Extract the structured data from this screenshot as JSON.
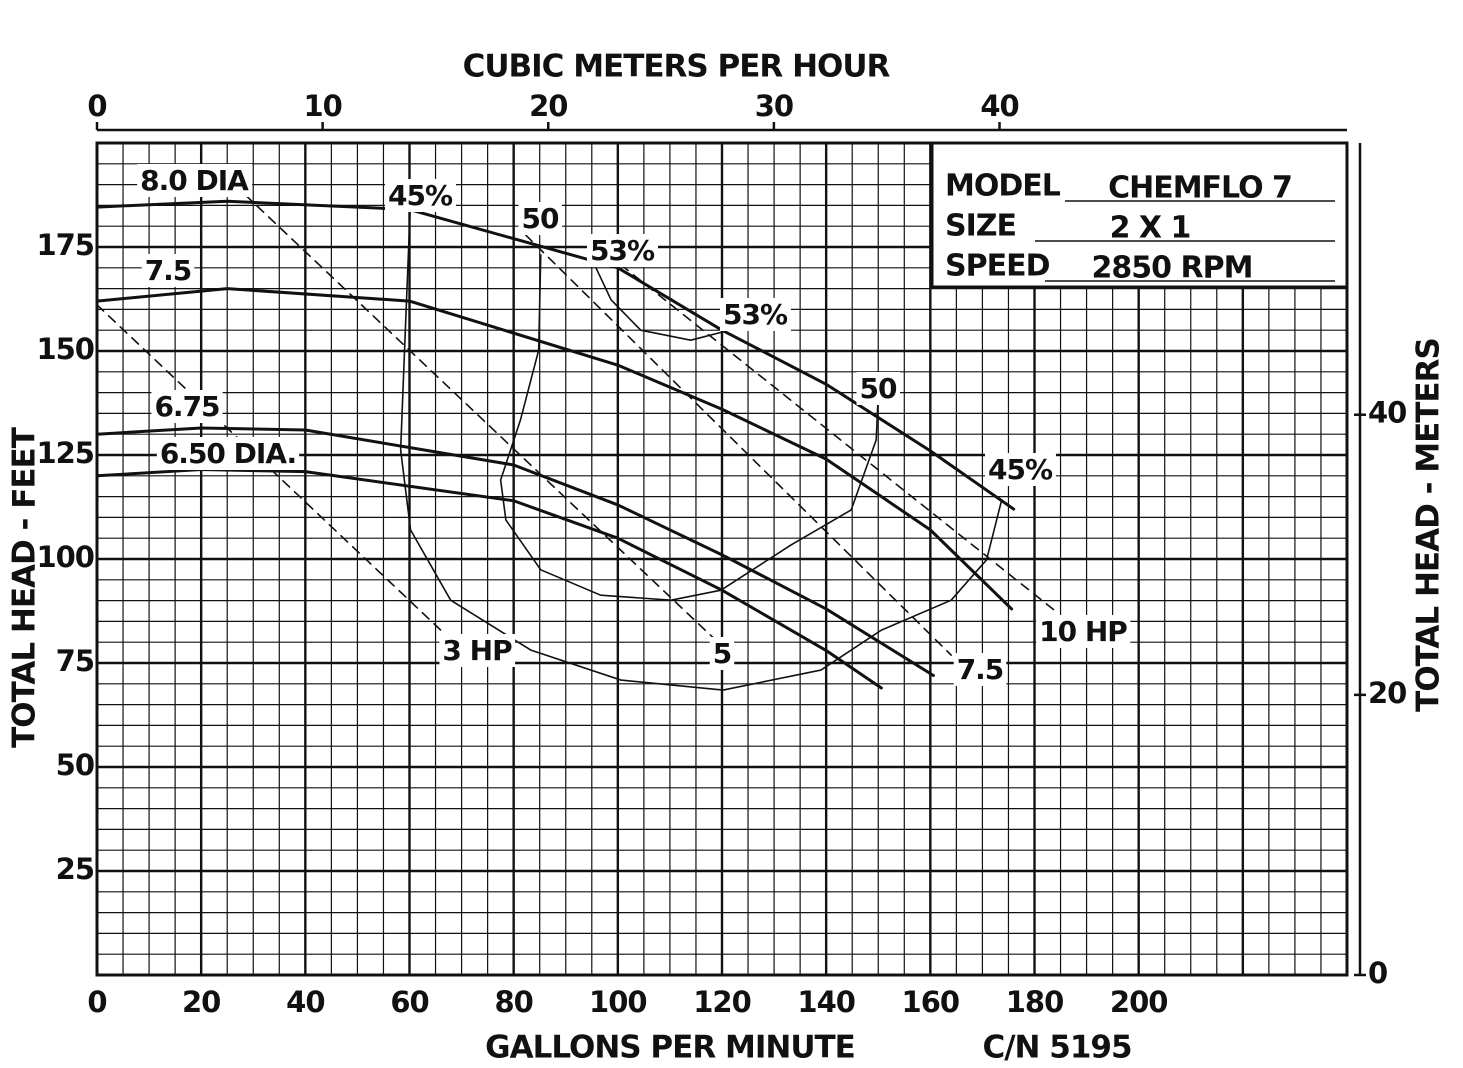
{
  "chart_data": {
    "type": "line",
    "title": "CUBIC METERS PER HOUR",
    "x_label": "GALLONS PER MINUTE",
    "y_label": "TOTAL HEAD - FEET",
    "y2_label": "TOTAL HEAD - METERS",
    "footnote": "C/N 5195",
    "info": [
      {
        "label": "MODEL",
        "value": "CHEMFLO 7"
      },
      {
        "label": "SIZE",
        "value": "2 X 1"
      },
      {
        "label": "SPEED",
        "value": "2850 RPM"
      }
    ],
    "xlim": [
      0,
      240
    ],
    "xticks": [
      0,
      20,
      40,
      60,
      80,
      100,
      120,
      140,
      160,
      180,
      200
    ],
    "ylim": [
      0,
      200
    ],
    "yticks": [
      25,
      50,
      75,
      100,
      125,
      150,
      175
    ],
    "x2lim": [
      0,
      55.4
    ],
    "x2ticks": [
      0,
      10,
      20,
      30,
      40
    ],
    "y2lim": [
      0,
      59.4
    ],
    "y2ticks": [
      0,
      20,
      40
    ],
    "grid": true,
    "color": "#111111",
    "series": [
      {
        "labels": [
          "8.0 DIA"
        ],
        "line_style": "thick",
        "x": [
          0,
          25,
          60,
          100,
          120,
          140,
          160,
          176
        ],
        "values": [
          184.6,
          186,
          184,
          170,
          155,
          142,
          126,
          112
        ]
      },
      {
        "labels": [
          "7.5"
        ],
        "line_style": "thick",
        "x": [
          0,
          25,
          60,
          100,
          120,
          140,
          160,
          175.6
        ],
        "values": [
          162,
          165,
          162,
          146.6,
          136,
          124,
          107,
          88
        ]
      },
      {
        "labels": [
          "6.75"
        ],
        "line_style": "thick",
        "x": [
          0,
          20,
          40,
          80,
          100,
          120,
          140,
          160.6
        ],
        "values": [
          130,
          131.5,
          131,
          122.6,
          113,
          101,
          88,
          72
        ]
      },
      {
        "labels": [
          "6.50 DIA."
        ],
        "line_style": "thick",
        "x": [
          0,
          20,
          40,
          80,
          100,
          120,
          140,
          150.6
        ],
        "values": [
          120,
          121.5,
          121,
          114,
          105,
          92.5,
          78,
          69
        ]
      },
      {
        "labels": [
          "45%",
          "45%"
        ],
        "line_style": "thin",
        "x": [
          60.2,
          59.2,
          58.3,
          60.2,
          67.9,
          83.3,
          100.6,
          120.2,
          139,
          150.6,
          164,
          170.8,
          173.7
        ],
        "values": [
          186.3,
          155,
          126.2,
          107,
          90.1,
          78.1,
          70.9,
          68.5,
          73.3,
          82.9,
          90.1,
          99.8,
          114.2
        ]
      },
      {
        "labels": [
          "50",
          "50"
        ],
        "line_style": "thin",
        "x": [
          85.2,
          84.8,
          81.3,
          77.5,
          78.5,
          85.2,
          96.7,
          110.2,
          119.8,
          133.3,
          144.8,
          149.6,
          150
        ],
        "values": [
          173.1,
          150.2,
          133.4,
          119,
          109.4,
          97.4,
          91.3,
          90.1,
          92.5,
          103.4,
          111.8,
          128.6,
          139.4
        ]
      },
      {
        "labels": [
          "53%",
          "53%"
        ],
        "line_style": "thin",
        "x": [
          95.8,
          98.7,
          104.4,
          114,
          120.2
        ],
        "values": [
          170,
          162.3,
          155,
          152.6,
          154.6
        ]
      },
      {
        "labels": [
          "3 HP"
        ],
        "line_style": "dashed",
        "x": [
          0,
          66
        ],
        "values": [
          161.1,
          82.9
        ]
      },
      {
        "labels": [
          "5"
        ],
        "line_style": "dashed",
        "x": [
          28.5,
          118.8
        ],
        "values": [
          187.5,
          80.5
        ]
      },
      {
        "labels": [
          "7.5"
        ],
        "line_style": "dashed",
        "x": [
          82.3,
          164
        ],
        "values": [
          177.9,
          76.9
        ]
      },
      {
        "labels": [
          "10 HP"
        ],
        "line_style": "dashed",
        "x": [
          100.6,
          184.2
        ],
        "values": [
          170.7,
          87.3
        ]
      }
    ]
  }
}
